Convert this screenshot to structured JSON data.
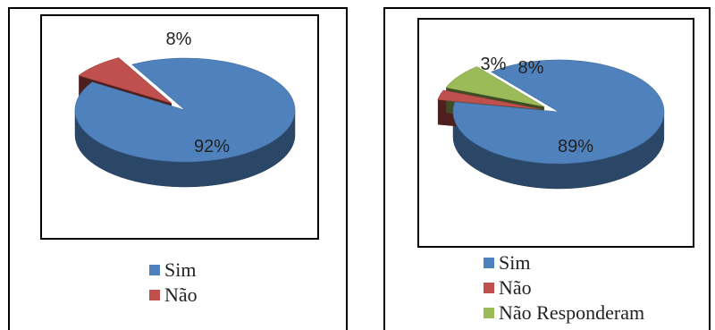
{
  "chart_data": [
    {
      "type": "pie",
      "style": "3d-exploded",
      "categories": [
        "Sim",
        "Não"
      ],
      "values": [
        92,
        8
      ],
      "data_labels": [
        "92%",
        "8%"
      ],
      "colors": [
        "#4f81bd",
        "#c0504d"
      ],
      "legend": [
        "Sim",
        "Não"
      ],
      "legend_placement": "bottom"
    },
    {
      "type": "pie",
      "style": "3d-exploded",
      "categories": [
        "Sim",
        "Não",
        "Não Responderam"
      ],
      "values": [
        89,
        3,
        8
      ],
      "data_labels": [
        "89%",
        "3%",
        "8%"
      ],
      "colors": [
        "#4f81bd",
        "#c0504d",
        "#9bbb59"
      ],
      "legend": [
        "Sim",
        "Não",
        "Não Responderam"
      ],
      "legend_placement": "bottom"
    }
  ]
}
